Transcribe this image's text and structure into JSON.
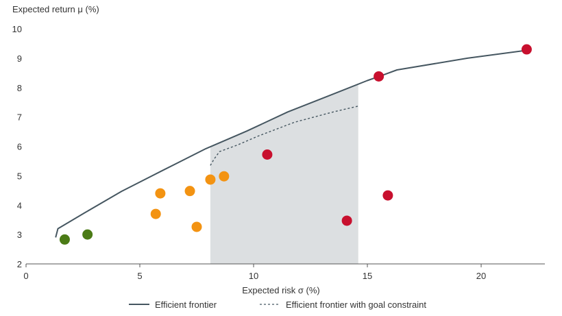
{
  "chart_data": {
    "type": "scatter",
    "xlabel": "Expected risk σ (%)",
    "ylabel": "Expected return μ (%)",
    "xlim": [
      0,
      22.8
    ],
    "ylim": [
      2,
      10
    ],
    "x_ticks": [
      "0",
      "5",
      "10",
      "15",
      "20"
    ],
    "x_tick_values": [
      0,
      5,
      10,
      15,
      20
    ],
    "y_ticks": [
      "2",
      "3",
      "4",
      "5",
      "6",
      "7",
      "8",
      "9",
      "10"
    ],
    "y_tick_values": [
      2,
      3,
      4,
      5,
      6,
      7,
      8,
      9,
      10
    ],
    "grid": false,
    "shaded_region": {
      "x_from": 8.1,
      "x_to": 14.6,
      "color": "#dcdfe1"
    },
    "series": [
      {
        "name": "Efficient frontier",
        "kind": "line",
        "style": "solid",
        "color": "#455660",
        "x": [
          1.3,
          1.4,
          2.6,
          4.2,
          6.0,
          7.9,
          9.7,
          11.5,
          13.3,
          15.0,
          15.6,
          16.3,
          19.4,
          22.1
        ],
        "y": [
          2.9,
          3.2,
          3.75,
          4.47,
          5.18,
          5.92,
          6.52,
          7.17,
          7.72,
          8.24,
          8.4,
          8.6,
          9.0,
          9.28
        ]
      },
      {
        "name": "Efficient frontier with goal constraint",
        "kind": "line",
        "style": "dashed",
        "color": "#455660",
        "x": [
          8.1,
          8.25,
          8.5,
          9.3,
          10.2,
          11.8,
          13.5,
          14.6
        ],
        "y": [
          5.35,
          5.55,
          5.82,
          6.05,
          6.35,
          6.82,
          7.17,
          7.37
        ]
      },
      {
        "kind": "points",
        "color": "#4b7b16",
        "x": [
          1.7,
          2.7
        ],
        "y": [
          2.83,
          3.0
        ]
      },
      {
        "kind": "points",
        "color": "#f39312",
        "x": [
          5.9,
          5.7,
          7.2,
          7.5,
          8.1,
          8.7
        ],
        "y": [
          4.4,
          3.7,
          4.48,
          3.26,
          4.87,
          4.98
        ]
      },
      {
        "kind": "points",
        "color": "#c8102e",
        "x": [
          10.6,
          14.1,
          15.5,
          15.9,
          22.0
        ],
        "y": [
          5.72,
          3.47,
          8.38,
          4.33,
          9.3
        ]
      }
    ],
    "legend": {
      "placement": "bottom-center",
      "entries": [
        "Efficient frontier",
        "Efficient frontier with goal constraint"
      ]
    }
  }
}
